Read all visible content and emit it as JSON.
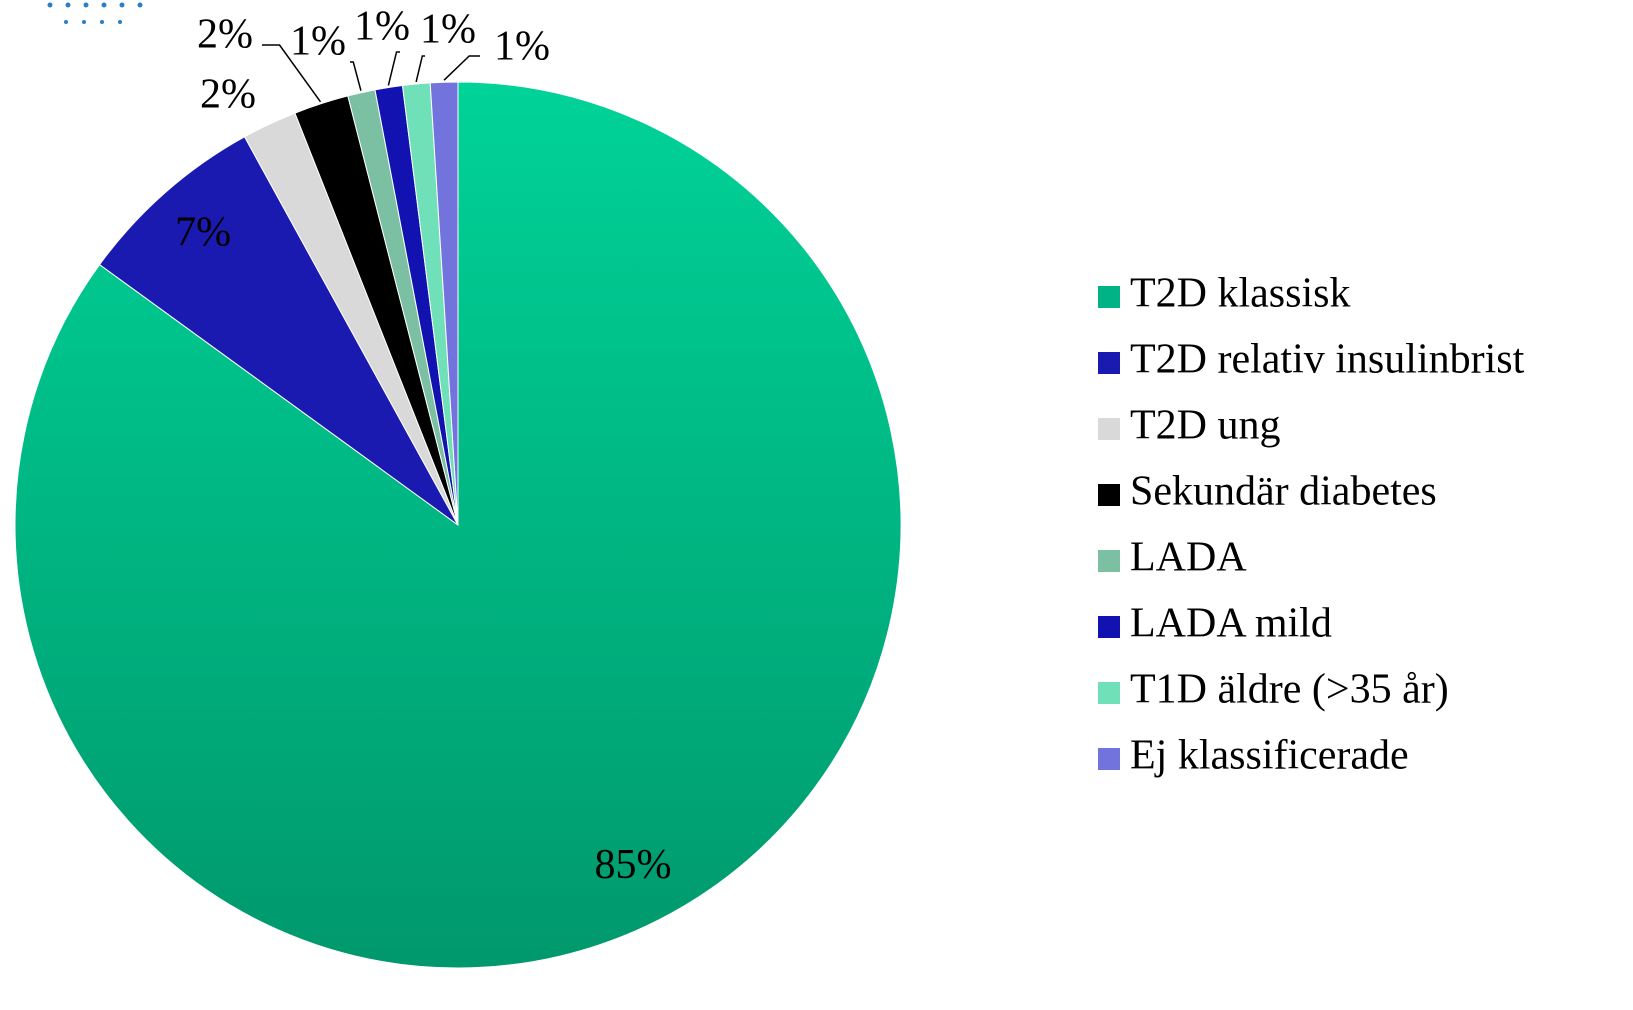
{
  "chart_data": {
    "type": "pie",
    "categories": [
      "T2D klassisk",
      "T2D relativ insulinbrist",
      "T2D ung",
      "Sekundär diabetes",
      "LADA",
      "LADA mild",
      "T1D äldre (>35 år)",
      "Ej klassificerade"
    ],
    "values": [
      85,
      7,
      2,
      2,
      1,
      1,
      1,
      1
    ],
    "value_labels": [
      "85%",
      "7%",
      "2%",
      "2%",
      "1%",
      "1%",
      "1%",
      "1%"
    ],
    "colors": [
      "#00b386",
      "#1a1ab0",
      "#d9d9d9",
      "#000000",
      "#7cc0a4",
      "#1212b0",
      "#6fe0b8",
      "#7373dd"
    ],
    "legend": "right"
  }
}
